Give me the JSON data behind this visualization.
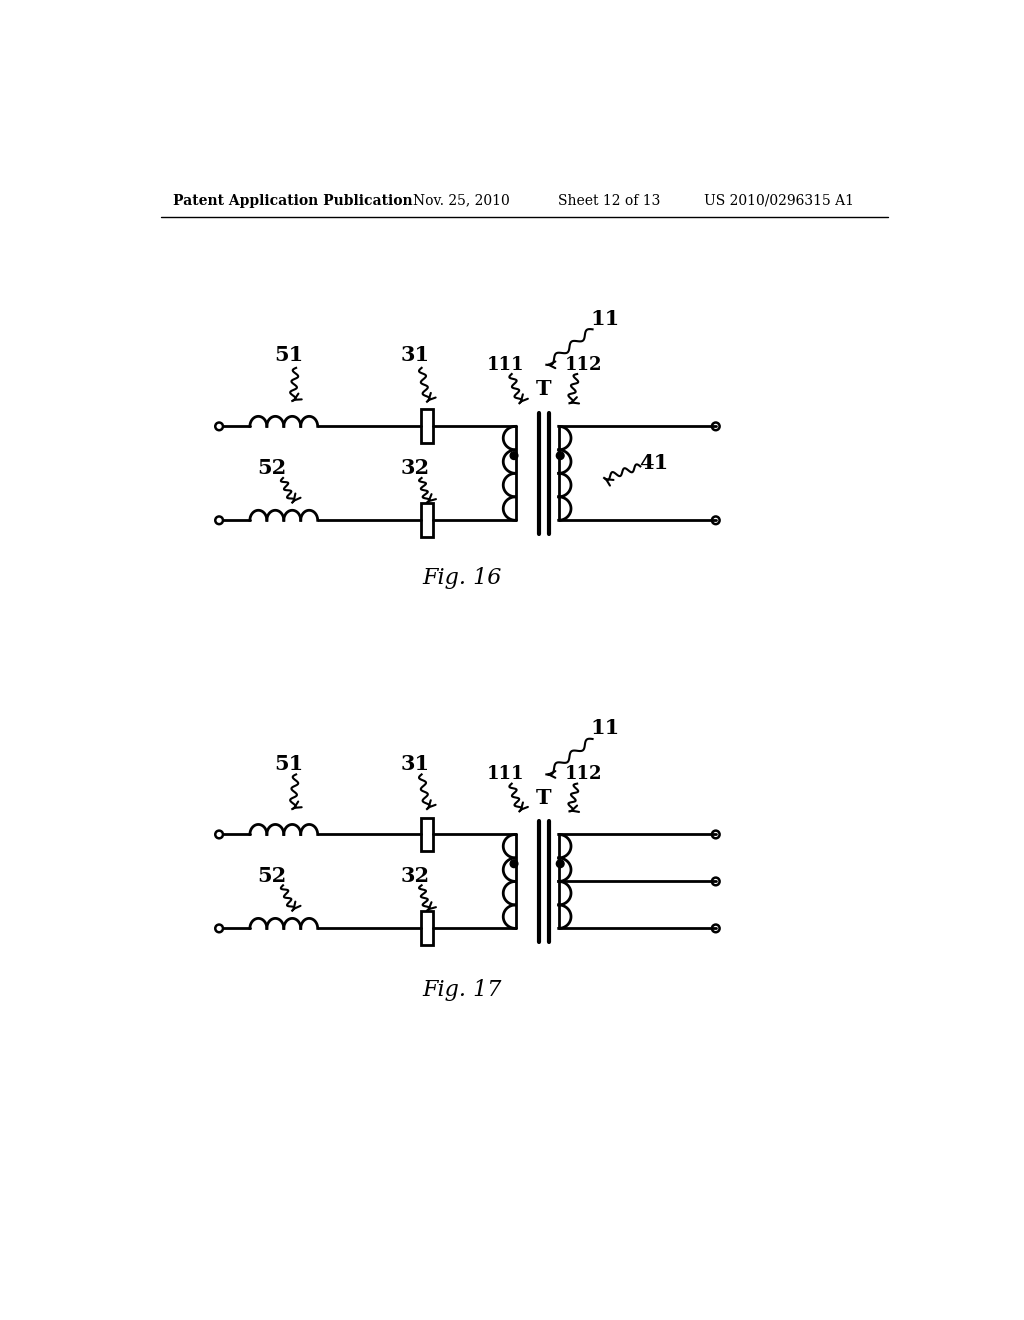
{
  "bg_color": "#ffffff",
  "line_color": "#000000",
  "header_text": "Patent Application Publication",
  "header_date": "Nov. 25, 2010",
  "header_sheet": "Sheet 12 of 13",
  "header_patent": "US 2010/0296315 A1",
  "fig16_label": "Fig. 16",
  "fig17_label": "Fig. 17",
  "header_fontsize": 10,
  "label_fontsize": 15,
  "fig_label_fontsize": 16
}
